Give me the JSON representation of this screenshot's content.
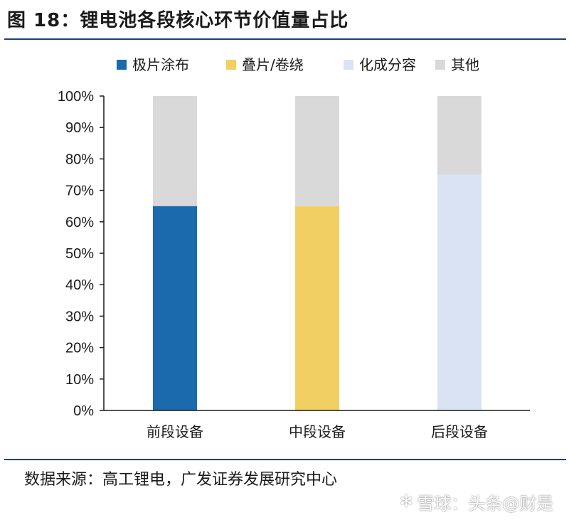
{
  "title": "图 18：锂电池各段核心环节价值量占比",
  "source": "数据来源：高工锂电，广发证券发展研究中心",
  "watermark": "雪球：头条@财是",
  "chart_data": {
    "type": "bar",
    "stacked": true,
    "categories": [
      "前段设备",
      "中段设备",
      "后段设备"
    ],
    "series": [
      {
        "name": "极片涂布",
        "color": "#1a6aad",
        "values": [
          65,
          0,
          0
        ]
      },
      {
        "name": "叠片/卷绕",
        "color": "#f2cf63",
        "values": [
          0,
          65,
          0
        ]
      },
      {
        "name": "化成分容",
        "color": "#d9e3f3",
        "values": [
          0,
          0,
          75
        ]
      },
      {
        "name": "其他",
        "color": "#d9d9d9",
        "values": [
          35,
          35,
          25
        ]
      }
    ],
    "ylim": [
      0,
      100
    ],
    "yticks": [
      "0%",
      "10%",
      "20%",
      "30%",
      "40%",
      "50%",
      "60%",
      "70%",
      "80%",
      "90%",
      "100%"
    ],
    "legend_position": "top",
    "grid": false
  }
}
